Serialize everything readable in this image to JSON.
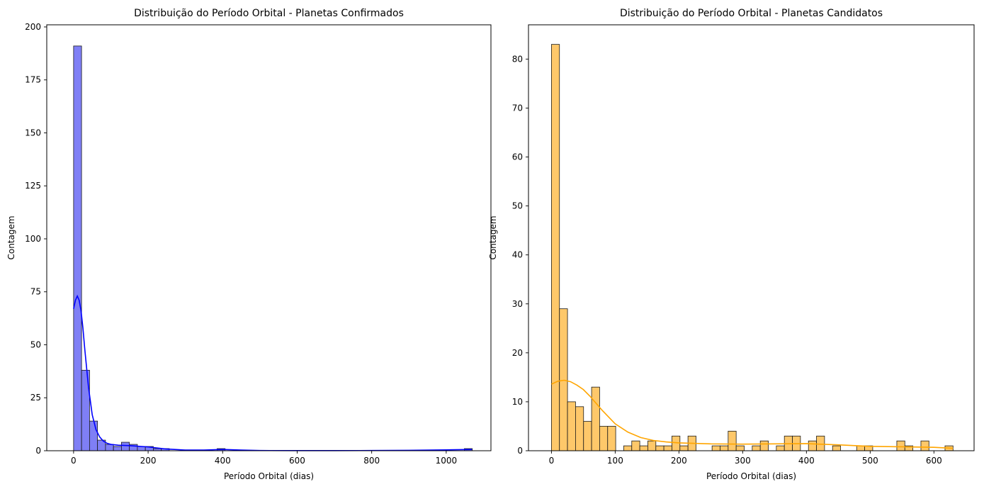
{
  "chart_data": [
    {
      "type": "histogram",
      "title": "Distribuição do Período Orbital - Planetas Confirmados",
      "xlabel": "Período Orbital (dias)",
      "ylabel": "Contagem",
      "xlim": [
        -72,
        1120
      ],
      "ylim": [
        0,
        201
      ],
      "xticks": [
        0,
        200,
        400,
        600,
        800,
        1000
      ],
      "yticks": [
        0,
        25,
        50,
        75,
        100,
        125,
        150,
        175,
        200
      ],
      "bar_color": "#7f7ff5",
      "kde_color": "#0000ff",
      "bins_start": 0,
      "bin_width": 21.4,
      "values": [
        191,
        38,
        14,
        5,
        3,
        2,
        4,
        3,
        2,
        2,
        1,
        1,
        0,
        0,
        0,
        0,
        0,
        0,
        1,
        0,
        0,
        0,
        0,
        0,
        0,
        0,
        0,
        0,
        0,
        0,
        0,
        0,
        0,
        0,
        0,
        0,
        0,
        0,
        0,
        0,
        0,
        0,
        0,
        0,
        0,
        0,
        0,
        0,
        0,
        1
      ],
      "kde": {
        "x": [
          0,
          5,
          10,
          15,
          20,
          25,
          30,
          40,
          50,
          60,
          70,
          80,
          90,
          100,
          120,
          150,
          200,
          250,
          300,
          350,
          400,
          450,
          500,
          600,
          700,
          800,
          900,
          1000,
          1069
        ],
        "y": [
          67,
          71,
          73,
          71,
          66,
          58,
          48,
          30,
          17,
          10,
          6.5,
          4.5,
          3.5,
          3.0,
          2.6,
          2.4,
          1.8,
          0.8,
          0.3,
          0.3,
          0.6,
          0.3,
          0.1,
          0.05,
          0.05,
          0.1,
          0.2,
          0.4,
          0.6
        ]
      }
    },
    {
      "type": "histogram",
      "title": "Distribuição do Período Orbital - Planetas Candidatos",
      "xlabel": "Período Orbital (dias)",
      "ylabel": "Contagem",
      "xlim": [
        -36,
        663
      ],
      "ylim": [
        0,
        87
      ],
      "xticks": [
        0,
        100,
        200,
        300,
        400,
        500,
        600
      ],
      "yticks": [
        0,
        10,
        20,
        30,
        40,
        50,
        60,
        70,
        80
      ],
      "bar_color": "#fec86a",
      "kde_color": "#ffa500",
      "bins_start": 0,
      "bin_width": 12.6,
      "values": [
        83,
        29,
        10,
        9,
        6,
        13,
        5,
        5,
        0,
        1,
        2,
        1,
        2,
        1,
        1,
        3,
        1,
        3,
        0,
        0,
        1,
        1,
        4,
        1,
        0,
        1,
        2,
        0,
        1,
        3,
        3,
        0,
        2,
        3,
        0,
        1,
        0,
        0,
        1,
        1,
        0,
        0,
        0,
        2,
        1,
        0,
        2,
        0,
        0,
        1
      ],
      "kde": {
        "x": [
          0,
          10,
          20,
          30,
          40,
          50,
          60,
          70,
          80,
          100,
          120,
          140,
          160,
          180,
          200,
          250,
          300,
          350,
          400,
          450,
          500,
          550,
          600,
          630
        ],
        "y": [
          13.6,
          14.2,
          14.4,
          14.1,
          13.4,
          12.5,
          11.2,
          9.7,
          8.2,
          5.5,
          3.8,
          2.7,
          2.1,
          1.8,
          1.6,
          1.4,
          1.35,
          1.4,
          1.45,
          1.2,
          0.9,
          0.8,
          0.7,
          0.5
        ]
      }
    }
  ]
}
